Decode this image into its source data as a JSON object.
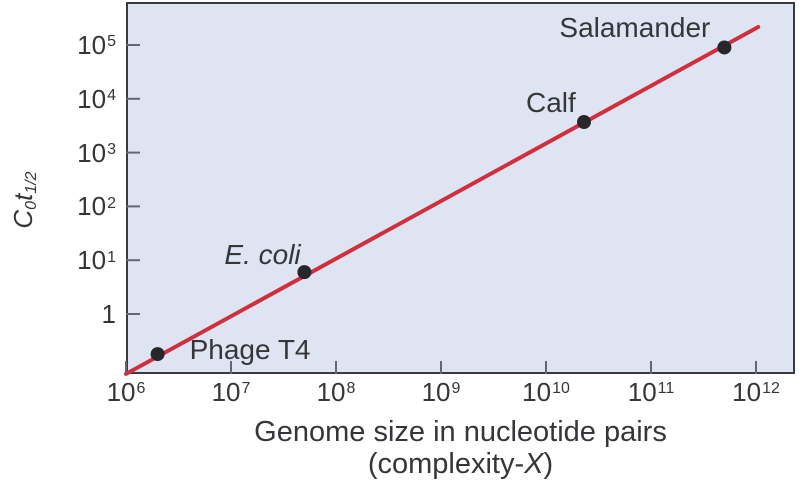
{
  "colors": {
    "background": "#ffffff",
    "plot_background": "#dfe4f2",
    "plot_border": "#3a3a42",
    "tick": "#666670",
    "text": "#36363a",
    "trend_line": "#d02f3d",
    "data_point": "#26262b"
  },
  "y_axis": {
    "title_c": "C",
    "title_c_sub": "0",
    "title_t": "t",
    "title_t_sub": "1/2"
  },
  "x_axis": {
    "title_line1": "Genome size in nucleotide pairs",
    "title_line2_prefix": "(complexity-",
    "title_line2_italic": "X",
    "title_line2_suffix": ")"
  },
  "chart_data": {
    "type": "scatter",
    "x_scale": "log",
    "y_scale": "log",
    "xlabel": "Genome size in nucleotide pairs (complexity-X)",
    "ylabel": "C0t1/2",
    "xlim": [
      1000000.0,
      1500000000000.0
    ],
    "ylim": [
      0.077,
      630000.0
    ],
    "x_ticks": [
      1000000.0,
      10000000.0,
      100000000.0,
      1000000000.0,
      10000000000.0,
      100000000000.0,
      1000000000000.0
    ],
    "y_ticks": [
      100000.0,
      10000.0,
      1000.0,
      100.0,
      10.0,
      1
    ],
    "grid": false,
    "legend": "none",
    "trend_line": {
      "x": [
        1000000.0,
        1050000000000.0
      ],
      "y": [
        0.077,
        216000.0
      ]
    },
    "points": [
      {
        "label": "Phage T4",
        "x": 2000000.0,
        "y": 0.18,
        "italic": false
      },
      {
        "label": "E. coli",
        "x": 50000000.0,
        "y": 6,
        "italic": true
      },
      {
        "label": "Calf",
        "x": 23000000000.0,
        "y": 3700,
        "italic": false
      },
      {
        "label": "Salamander",
        "x": 500000000000.0,
        "y": 90000,
        "italic": false
      }
    ]
  }
}
